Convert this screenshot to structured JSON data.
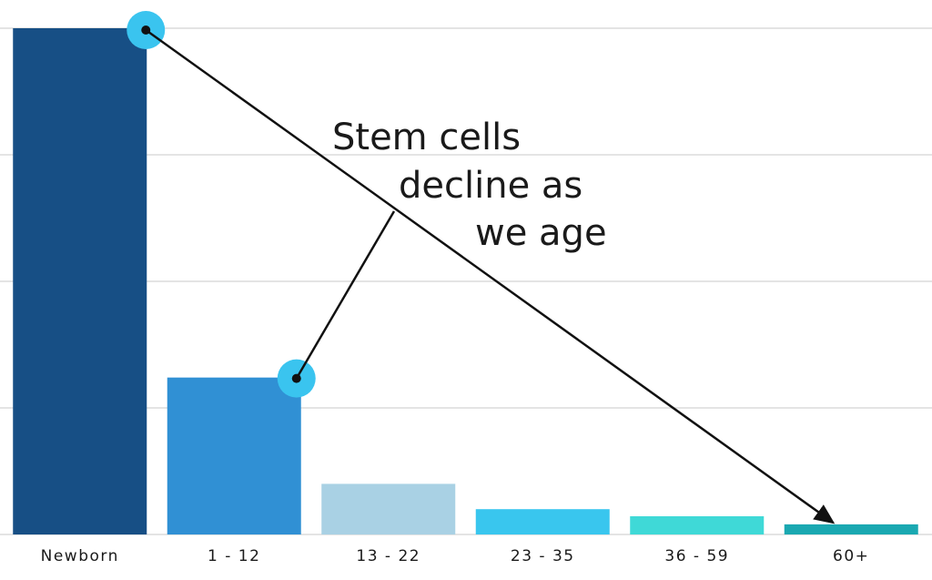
{
  "chart_data": {
    "type": "bar",
    "categories": [
      "Newborn",
      "1 - 12",
      "13 - 22",
      "23 - 35",
      "36 - 59",
      "60+"
    ],
    "values": [
      100,
      31,
      10,
      5,
      3.6,
      2
    ],
    "colors": [
      "#174f85",
      "#3090d4",
      "#a9d1e4",
      "#39c6ee",
      "#3fd9d7",
      "#1aa8b1"
    ],
    "ylim": [
      0,
      100
    ],
    "yticks": [
      0,
      25,
      50,
      75,
      100
    ],
    "grid": true,
    "annotation": [
      "Stem cells",
      "decline as",
      "we age"
    ]
  }
}
